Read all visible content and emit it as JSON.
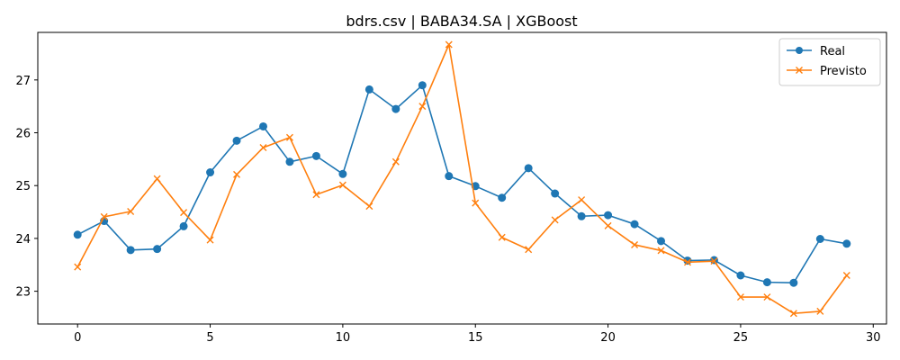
{
  "chart_data": {
    "type": "line",
    "title": "bdrs.csv | BABA34.SA | XGBoost",
    "xlabel": "",
    "ylabel": "",
    "xlim": [
      -1.5,
      30.5
    ],
    "ylim": [
      22.38,
      27.9
    ],
    "x_ticks": [
      0,
      5,
      10,
      15,
      20,
      25,
      30
    ],
    "y_ticks": [
      23,
      24,
      25,
      26,
      27
    ],
    "grid": false,
    "legend_position": "top-right",
    "x": [
      0,
      1,
      2,
      3,
      4,
      5,
      6,
      7,
      8,
      9,
      10,
      11,
      12,
      13,
      14,
      15,
      16,
      17,
      18,
      19,
      20,
      21,
      22,
      23,
      24,
      25,
      26,
      27,
      28,
      29
    ],
    "series": [
      {
        "name": "Real",
        "color": "#1f77b4",
        "marker": "circle",
        "values": [
          24.07,
          24.33,
          23.78,
          23.8,
          24.23,
          25.25,
          25.85,
          26.12,
          25.45,
          25.56,
          25.22,
          26.82,
          26.45,
          26.9,
          25.18,
          24.99,
          24.77,
          25.33,
          24.85,
          24.42,
          24.44,
          24.27,
          23.95,
          23.58,
          23.59,
          23.3,
          23.17,
          23.16,
          23.99,
          23.9
        ]
      },
      {
        "name": "Previsto",
        "color": "#ff7f0e",
        "marker": "x",
        "values": [
          23.46,
          24.41,
          24.51,
          25.13,
          24.49,
          23.97,
          25.21,
          25.72,
          25.91,
          24.83,
          25.01,
          24.61,
          25.45,
          26.5,
          27.67,
          24.67,
          24.02,
          23.79,
          24.35,
          24.73,
          24.24,
          23.88,
          23.77,
          23.55,
          23.57,
          22.89,
          22.89,
          22.58,
          22.62,
          23.3
        ]
      }
    ]
  }
}
